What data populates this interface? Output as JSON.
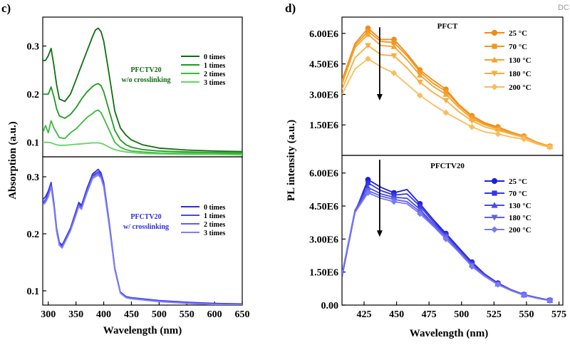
{
  "watermark": "DC",
  "panels": {
    "c": {
      "label": "c)",
      "ylabel": "Absorption (a.u.)",
      "xlabel": "Wavelength (nm)"
    },
    "d": {
      "label": "d)",
      "ylabel": "PL intensity (a.u.)",
      "xlabel": "Wavelength (nm)"
    }
  },
  "chart_data": [
    {
      "id": "c-top",
      "type": "line",
      "title": "PFCTV20 w/o crosslinking",
      "title_lines": [
        "PFCTV20",
        "w/o crosslinking"
      ],
      "xlabel": "Wavelength (nm)",
      "ylabel": "Absorption (a.u.)",
      "xlim": [
        290,
        650
      ],
      "ylim": [
        0.07,
        0.36
      ],
      "yticks": [
        "0.1",
        "0.2",
        "0.3"
      ],
      "ytick_values": [
        0.1,
        0.2,
        0.3
      ],
      "legend_position": "top-right",
      "x": [
        290,
        295,
        300,
        305,
        310,
        315,
        320,
        330,
        340,
        350,
        360,
        370,
        380,
        385,
        390,
        395,
        400,
        410,
        420,
        430,
        440,
        450,
        470,
        500,
        550,
        600,
        650
      ],
      "series": [
        {
          "name": "0 times",
          "color": "#0f6e0f",
          "values": [
            0.27,
            0.27,
            0.28,
            0.295,
            0.26,
            0.22,
            0.19,
            0.185,
            0.2,
            0.23,
            0.26,
            0.29,
            0.32,
            0.333,
            0.337,
            0.33,
            0.31,
            0.24,
            0.165,
            0.13,
            0.115,
            0.105,
            0.095,
            0.088,
            0.084,
            0.082,
            0.081
          ]
        },
        {
          "name": "1 times",
          "color": "#1f9a1f",
          "values": [
            0.2,
            0.2,
            0.2,
            0.215,
            0.195,
            0.17,
            0.155,
            0.15,
            0.158,
            0.172,
            0.19,
            0.205,
            0.216,
            0.22,
            0.222,
            0.218,
            0.205,
            0.165,
            0.125,
            0.105,
            0.095,
            0.09,
            0.085,
            0.082,
            0.08,
            0.079,
            0.078
          ]
        },
        {
          "name": "2 times",
          "color": "#3bbb3b",
          "values": [
            0.12,
            0.135,
            0.12,
            0.145,
            0.13,
            0.12,
            0.11,
            0.108,
            0.12,
            0.128,
            0.14,
            0.152,
            0.16,
            0.165,
            0.167,
            0.162,
            0.15,
            0.125,
            0.1,
            0.09,
            0.085,
            0.082,
            0.08,
            0.078,
            0.077,
            0.076,
            0.076
          ]
        },
        {
          "name": "3 times",
          "color": "#62d662",
          "values": [
            0.1,
            0.1,
            0.1,
            0.099,
            0.097,
            0.095,
            0.094,
            0.094,
            0.095,
            0.096,
            0.097,
            0.098,
            0.099,
            0.099,
            0.099,
            0.098,
            0.096,
            0.09,
            0.085,
            0.082,
            0.08,
            0.079,
            0.077,
            0.076,
            0.075,
            0.075,
            0.074
          ]
        }
      ]
    },
    {
      "id": "c-bottom",
      "type": "line",
      "title": "PFCTV20 w/ crosslinking",
      "title_lines": [
        "PFCTV20",
        "w/ crosslinking"
      ],
      "xlabel": "Wavelength (nm)",
      "ylabel": "Absorption (a.u.)",
      "xlim": [
        290,
        650
      ],
      "ylim": [
        0.075,
        0.335
      ],
      "xticks": [
        "300",
        "350",
        "400",
        "450",
        "500",
        "550",
        "600",
        "650"
      ],
      "xtick_values": [
        300,
        350,
        400,
        450,
        500,
        550,
        600,
        650
      ],
      "yticks": [
        "0.1",
        "0.2",
        "0.3"
      ],
      "ytick_values": [
        0.1,
        0.2,
        0.3
      ],
      "legend_position": "right",
      "x": [
        290,
        295,
        300,
        305,
        310,
        315,
        320,
        325,
        330,
        340,
        350,
        355,
        360,
        365,
        370,
        380,
        390,
        395,
        400,
        410,
        420,
        430,
        440,
        450,
        460,
        480,
        500,
        550,
        600,
        650
      ],
      "series": [
        {
          "name": "0 times",
          "color": "#2d2de6",
          "values": [
            0.26,
            0.265,
            0.275,
            0.29,
            0.255,
            0.21,
            0.185,
            0.18,
            0.19,
            0.21,
            0.24,
            0.255,
            0.25,
            0.265,
            0.28,
            0.305,
            0.313,
            0.307,
            0.29,
            0.22,
            0.14,
            0.098,
            0.09,
            0.088,
            0.087,
            0.085,
            0.083,
            0.08,
            0.078,
            0.077
          ]
        },
        {
          "name": "1 times",
          "color": "#4646ee",
          "values": [
            0.255,
            0.26,
            0.27,
            0.287,
            0.252,
            0.208,
            0.183,
            0.178,
            0.188,
            0.208,
            0.237,
            0.252,
            0.247,
            0.262,
            0.277,
            0.302,
            0.309,
            0.304,
            0.287,
            0.218,
            0.139,
            0.097,
            0.089,
            0.087,
            0.086,
            0.084,
            0.082,
            0.079,
            0.077,
            0.076
          ]
        },
        {
          "name": "2 times",
          "color": "#5f5ff2",
          "values": [
            0.252,
            0.257,
            0.267,
            0.284,
            0.25,
            0.206,
            0.181,
            0.176,
            0.186,
            0.206,
            0.235,
            0.25,
            0.245,
            0.26,
            0.275,
            0.3,
            0.306,
            0.301,
            0.284,
            0.216,
            0.138,
            0.097,
            0.089,
            0.087,
            0.086,
            0.084,
            0.082,
            0.079,
            0.077,
            0.076
          ]
        },
        {
          "name": "3 times",
          "color": "#8080f5",
          "values": [
            0.25,
            0.255,
            0.265,
            0.282,
            0.248,
            0.204,
            0.18,
            0.175,
            0.185,
            0.205,
            0.233,
            0.248,
            0.243,
            0.258,
            0.272,
            0.297,
            0.303,
            0.298,
            0.282,
            0.214,
            0.137,
            0.096,
            0.088,
            0.086,
            0.085,
            0.083,
            0.081,
            0.078,
            0.076,
            0.075
          ]
        }
      ]
    },
    {
      "id": "d-top",
      "type": "line",
      "title": "PFCT",
      "xlabel": "Wavelength (nm)",
      "ylabel": "PL intensity (a.u.)",
      "xlim": [
        408,
        578
      ],
      "ylim": [
        0,
        6800000
      ],
      "yticks": [
        "1.50E6",
        "3.00E6",
        "4.50E6",
        "6.00E6"
      ],
      "ytick_values": [
        1500000,
        3000000,
        4500000,
        6000000
      ],
      "legend_position": "top-right",
      "annotation": "arrow down at 437 nm",
      "arrow_x": 437,
      "arrow_y": [
        6300000,
        2700000
      ],
      "x": [
        408,
        418,
        428,
        438,
        448,
        458,
        468,
        478,
        488,
        498,
        508,
        518,
        528,
        538,
        548,
        558,
        568
      ],
      "markers_x": [
        428,
        448,
        468,
        488,
        508,
        528,
        548,
        568
      ],
      "series": [
        {
          "name": "25 °C",
          "color": "#f08a1a",
          "marker": "circle",
          "values": [
            3700000,
            5500000,
            6250000,
            5700000,
            5700000,
            5000000,
            4200000,
            3700000,
            3250000,
            2500000,
            1950000,
            1600000,
            1400000,
            1150000,
            950000,
            650000,
            450000
          ]
        },
        {
          "name": "70 °C",
          "color": "#f4961f",
          "marker": "square",
          "values": [
            3600000,
            5400000,
            6100000,
            5600000,
            5550000,
            4900000,
            4100000,
            3550000,
            3150000,
            2450000,
            1900000,
            1550000,
            1350000,
            1120000,
            930000,
            640000,
            440000
          ]
        },
        {
          "name": "130 °C",
          "color": "#f7a22c",
          "marker": "triangle-up",
          "values": [
            3500000,
            5300000,
            5950000,
            5400000,
            5350000,
            4700000,
            3950000,
            3400000,
            3000000,
            2350000,
            1800000,
            1500000,
            1300000,
            1090000,
            910000,
            630000,
            430000
          ]
        },
        {
          "name": "180 °C",
          "color": "#f8ae3d",
          "marker": "triangle-down",
          "values": [
            3250000,
            4800000,
            5400000,
            4950000,
            4900000,
            4300000,
            3600000,
            3100000,
            2700000,
            2150000,
            1700000,
            1400000,
            1230000,
            1050000,
            880000,
            610000,
            420000
          ]
        },
        {
          "name": "200 °C",
          "color": "#f9bd5e",
          "marker": "diamond",
          "values": [
            3000000,
            4250000,
            4750000,
            4350000,
            4050000,
            3500000,
            2950000,
            2500000,
            2100000,
            1750000,
            1400000,
            1150000,
            1050000,
            900000,
            800000,
            560000,
            400000
          ]
        }
      ]
    },
    {
      "id": "d-bottom",
      "type": "line",
      "title": "PFCTV20",
      "xlabel": "Wavelength (nm)",
      "ylabel": "PL intensity (a.u.)",
      "xlim": [
        408,
        578
      ],
      "ylim": [
        0,
        6800000
      ],
      "xticks": [
        "425",
        "450",
        "475",
        "500",
        "525",
        "550",
        "575"
      ],
      "xtick_values": [
        425,
        450,
        475,
        500,
        525,
        550,
        575
      ],
      "yticks": [
        "0.00",
        "1.50E6",
        "3.00E6",
        "4.50E6",
        "6.00E6"
      ],
      "ytick_values": [
        0,
        1500000,
        3000000,
        4500000,
        6000000
      ],
      "legend_position": "top-right",
      "annotation": "arrow down at 437 nm",
      "arrow_x": 437,
      "arrow_y": [
        6600000,
        3100000
      ],
      "x": [
        408,
        418,
        428,
        438,
        448,
        458,
        468,
        478,
        488,
        498,
        508,
        518,
        528,
        538,
        548,
        558,
        568
      ],
      "markers_x": [
        428,
        448,
        468,
        488,
        508,
        528,
        548,
        568
      ],
      "series": [
        {
          "name": "25 °C",
          "color": "#1e1ee0",
          "marker": "circle",
          "values": [
            1300000,
            4200000,
            5700000,
            5350000,
            5100000,
            5250000,
            4600000,
            3900000,
            3250000,
            2600000,
            1950000,
            1400000,
            1000000,
            700000,
            480000,
            340000,
            220000
          ]
        },
        {
          "name": "70 °C",
          "color": "#3535e6",
          "marker": "square",
          "values": [
            1350000,
            4250000,
            5550000,
            5200000,
            5000000,
            5050000,
            4500000,
            3800000,
            3200000,
            2550000,
            1900000,
            1380000,
            980000,
            690000,
            470000,
            330000,
            220000
          ]
        },
        {
          "name": "130 °C",
          "color": "#4a4aea",
          "marker": "triangle-up",
          "values": [
            1400000,
            4300000,
            5350000,
            5050000,
            4900000,
            4850000,
            4350000,
            3700000,
            3150000,
            2500000,
            1850000,
            1350000,
            960000,
            680000,
            460000,
            320000,
            210000
          ]
        },
        {
          "name": "180 °C",
          "color": "#6060ee",
          "marker": "triangle-down",
          "values": [
            1400000,
            4250000,
            5200000,
            4950000,
            4800000,
            4700000,
            4250000,
            3650000,
            3100000,
            2450000,
            1800000,
            1330000,
            950000,
            670000,
            455000,
            315000,
            210000
          ]
        },
        {
          "name": "200 °C",
          "color": "#7a7af2",
          "marker": "diamond",
          "values": [
            1400000,
            4200000,
            5100000,
            4850000,
            4700000,
            4600000,
            4150000,
            3600000,
            3000000,
            2400000,
            1750000,
            1300000,
            930000,
            660000,
            450000,
            310000,
            200000
          ]
        }
      ]
    }
  ]
}
